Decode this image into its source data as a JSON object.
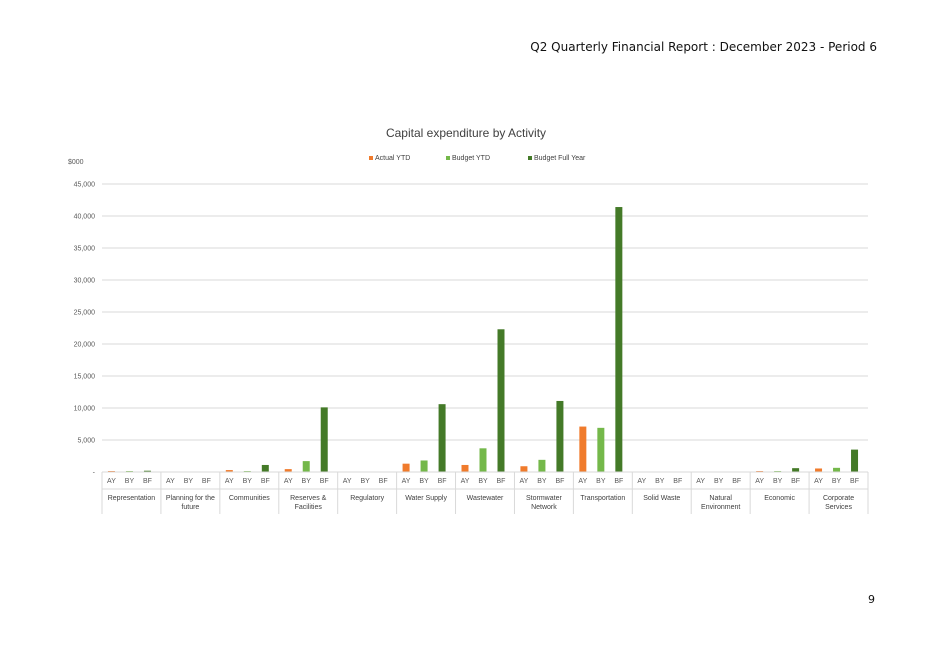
{
  "page": {
    "header": "Q2 Quarterly Financial Report : December 2023 - Period 6",
    "page_number": "9"
  },
  "colors": {
    "actual": "#F07B2C",
    "budget_ytd": "#74B84A",
    "budget_full_year": "#447A28"
  },
  "chart_data": {
    "type": "bar",
    "title": "Capital expenditure by Activity",
    "ylabel": "$000",
    "xlabel": "",
    "ylim": [
      0,
      45000
    ],
    "yticks": [
      0,
      5000,
      10000,
      15000,
      20000,
      25000,
      30000,
      35000,
      40000,
      45000
    ],
    "ytick_labels": [
      "-",
      "5,000",
      "10,000",
      "15,000",
      "20,000",
      "25,000",
      "30,000",
      "35,000",
      "40,000",
      "45,000"
    ],
    "grid": true,
    "legend_position": "top",
    "sub_labels": [
      "AY",
      "BY",
      "BF"
    ],
    "categories": [
      [
        "Representation"
      ],
      [
        "Planning for the",
        "future"
      ],
      [
        "Communities"
      ],
      [
        "Reserves &",
        "Facilities"
      ],
      [
        "Regulatory"
      ],
      [
        "Water Supply"
      ],
      [
        "Wastewater"
      ],
      [
        "Stormwater",
        "Network"
      ],
      [
        "Transportation"
      ],
      [
        "Solid Waste"
      ],
      [
        "Natural",
        "Environment"
      ],
      [
        "Economic"
      ],
      [
        "Corporate",
        "Services"
      ]
    ],
    "series": [
      {
        "name": "Actual YTD",
        "values": [
          150,
          0,
          300,
          450,
          0,
          1300,
          1100,
          900,
          7100,
          0,
          0,
          150,
          550
        ]
      },
      {
        "name": "Budget YTD",
        "values": [
          150,
          0,
          150,
          1700,
          0,
          1800,
          3700,
          1900,
          6900,
          0,
          0,
          150,
          650
        ]
      },
      {
        "name": "Budget Full Year",
        "values": [
          200,
          0,
          1100,
          10100,
          0,
          10600,
          22300,
          11100,
          41400,
          0,
          0,
          600,
          3500
        ]
      }
    ]
  }
}
